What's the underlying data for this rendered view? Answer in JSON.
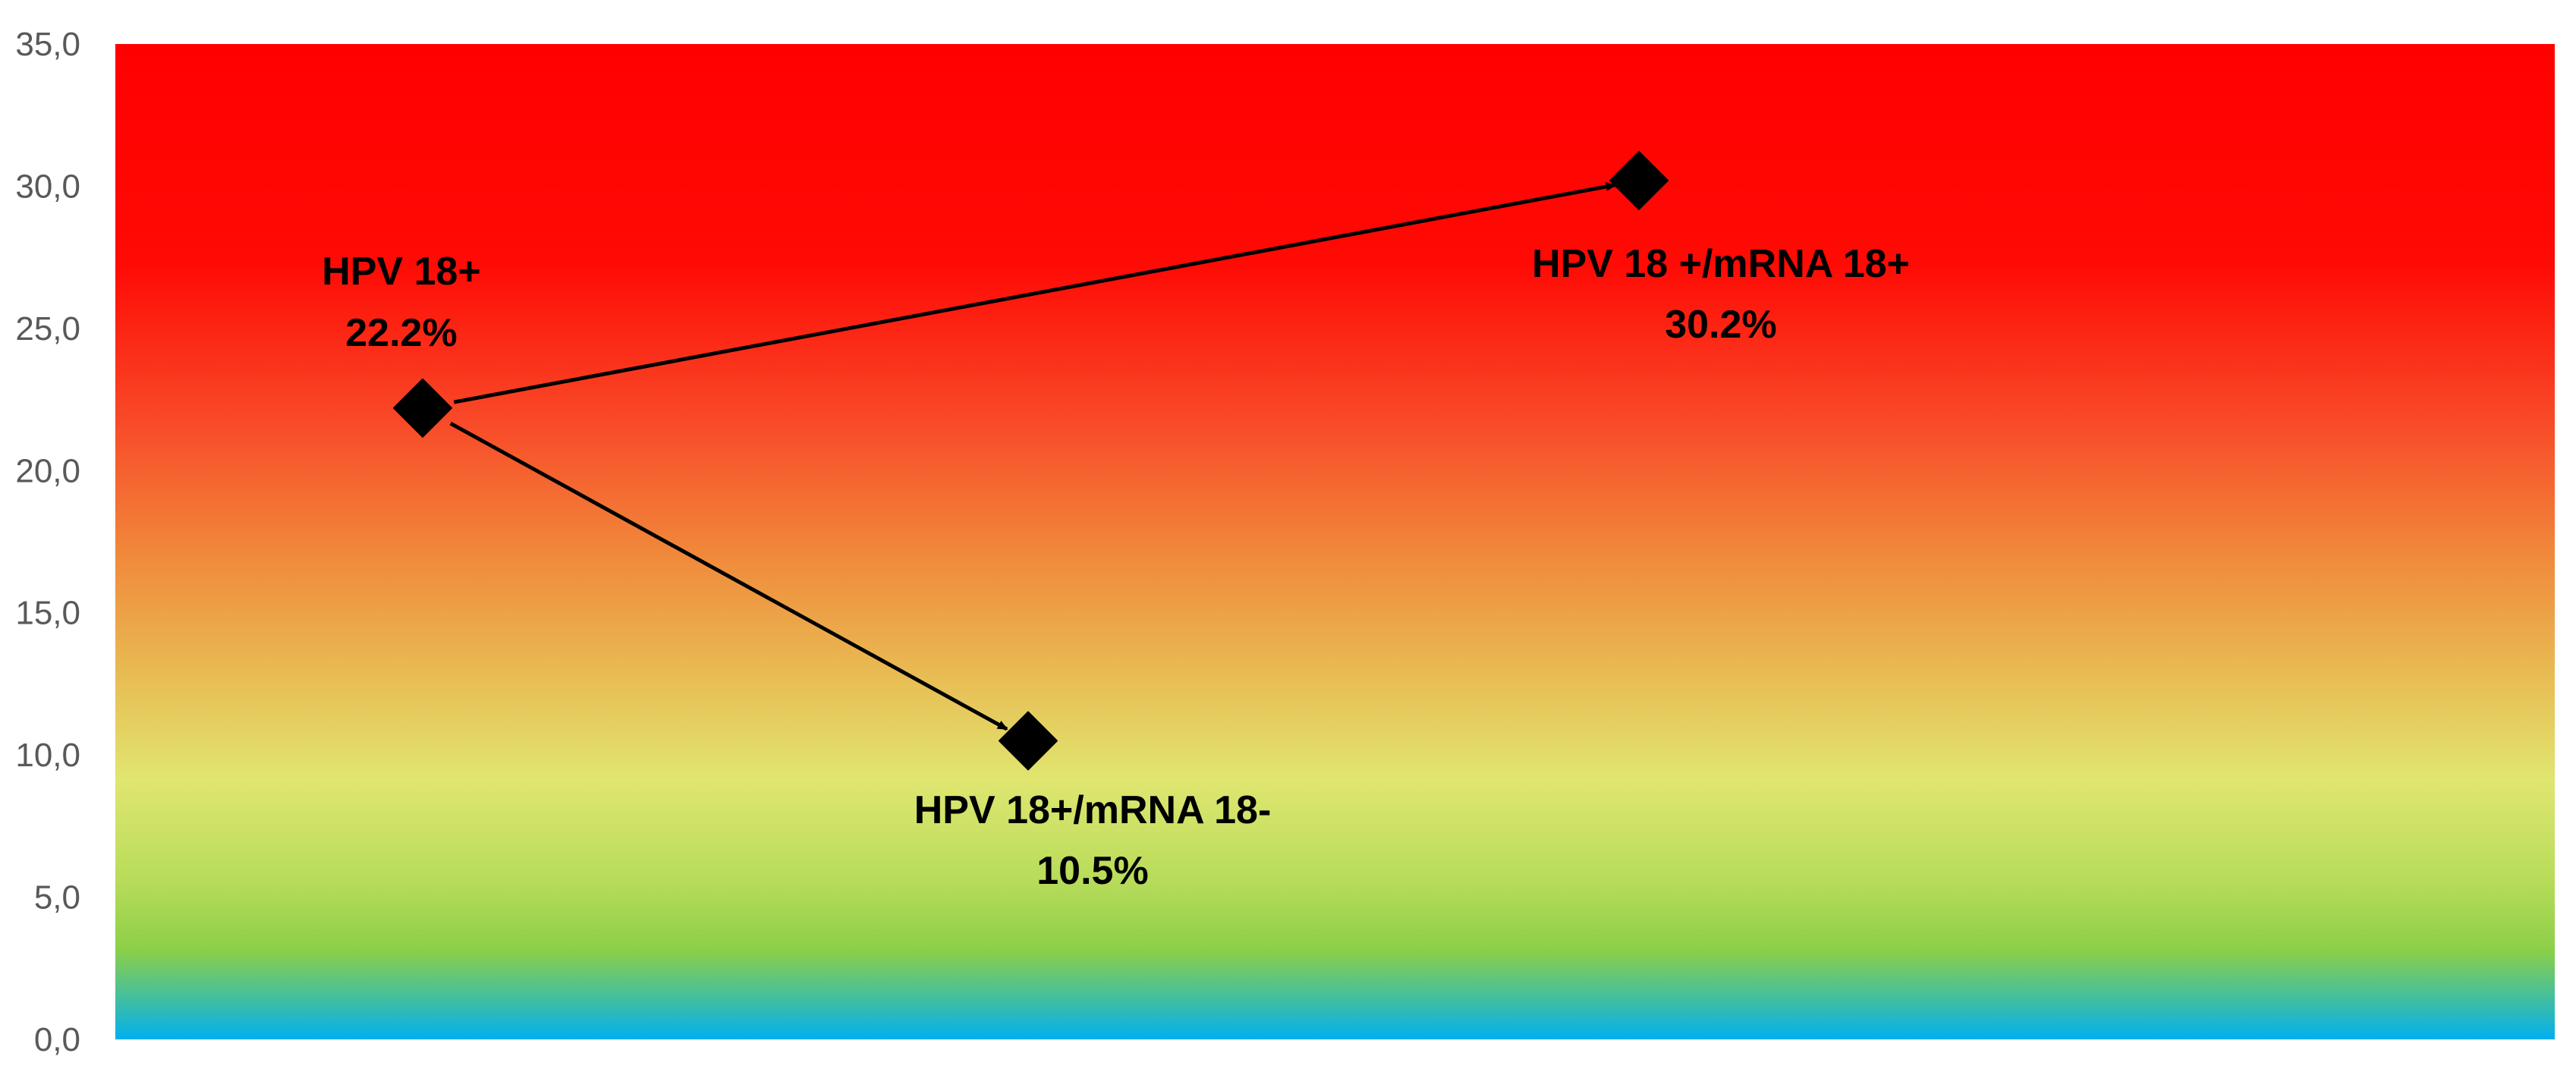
{
  "chart_data": {
    "type": "scatter",
    "title": "",
    "xlabel": "",
    "ylabel": "",
    "ylim": [
      0,
      35
    ],
    "y_ticks": [
      "0,0",
      "5,0",
      "10,0",
      "15,0",
      "20,0",
      "25,0",
      "30,0",
      "35,0"
    ],
    "grid": false,
    "legend": "none",
    "background": "vertical gradient: red (high) to yellow-green (mid) to blue (0)",
    "gradient_colors": {
      "top": "#ff0000",
      "upper": "#fb3a1e",
      "mid_high": "#f08c3c",
      "mid": "#e6c85a",
      "yellow": "#e0e670",
      "green": "#8ccf48",
      "bottom": "#00b0f0"
    },
    "marker": "diamond",
    "marker_color": "#000000",
    "points": [
      {
        "id": "hpv18",
        "x": 1,
        "y": 22.2,
        "label": "HPV 18+",
        "value_label": "22.2%"
      },
      {
        "id": "mrna_neg",
        "x": 2,
        "y": 10.5,
        "label": "HPV 18+/mRNA 18-",
        "value_label": "10.5%"
      },
      {
        "id": "mrna_pos",
        "x": 3,
        "y": 30.2,
        "label": "HPV 18 +/mRNA 18+",
        "value_label": "30.2%"
      }
    ],
    "arrows": [
      {
        "from": "hpv18",
        "to": "mrna_pos"
      },
      {
        "from": "hpv18",
        "to": "mrna_neg"
      }
    ]
  }
}
